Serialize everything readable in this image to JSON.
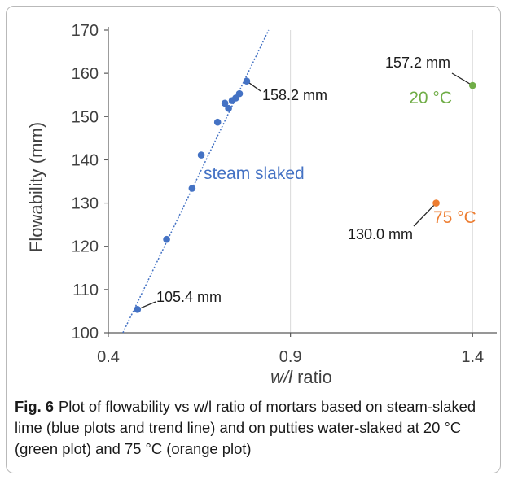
{
  "chart_data": {
    "type": "scatter",
    "xlabel_prefix": "w/l",
    "xlabel_suffix": " ratio",
    "ylabel": "Flowability (mm)",
    "xlim": [
      0.4,
      1.5
    ],
    "ylim": [
      100,
      170
    ],
    "x_ticks": [
      "0.4",
      "0.9",
      "1.4"
    ],
    "x_tick_values": [
      0.4,
      0.9,
      1.4
    ],
    "y_ticks": [
      "100",
      "110",
      "120",
      "130",
      "140",
      "150",
      "160",
      "170"
    ],
    "y_tick_values": [
      100,
      110,
      120,
      130,
      140,
      150,
      160,
      170
    ],
    "series": [
      {
        "name": "steam slaked",
        "color": "#4472c4",
        "points": [
          {
            "x": 0.48,
            "y": 105.4
          },
          {
            "x": 0.56,
            "y": 121.6
          },
          {
            "x": 0.63,
            "y": 133.4
          },
          {
            "x": 0.655,
            "y": 141.1
          },
          {
            "x": 0.7,
            "y": 148.7
          },
          {
            "x": 0.72,
            "y": 153.1
          },
          {
            "x": 0.73,
            "y": 151.9
          },
          {
            "x": 0.74,
            "y": 153.7
          },
          {
            "x": 0.75,
            "y": 154.3
          },
          {
            "x": 0.76,
            "y": 155.3
          },
          {
            "x": 0.78,
            "y": 158.2
          }
        ],
        "trend": {
          "x0": 0.44,
          "y0": 100,
          "x1": 0.84,
          "y1": 170
        }
      },
      {
        "name": "20 °C",
        "color": "#70ad47",
        "points": [
          {
            "x": 1.4,
            "y": 157.2
          }
        ]
      },
      {
        "name": "75 °C",
        "color": "#ed7d31",
        "points": [
          {
            "x": 1.3,
            "y": 130.0
          }
        ]
      }
    ],
    "annotations": [
      {
        "text": "158.2 mm",
        "x": 0.78,
        "y": 158.2
      },
      {
        "text": "105.4 mm",
        "x": 0.48,
        "y": 105.4
      },
      {
        "text": "157.2 mm",
        "x": 1.4,
        "y": 157.2
      },
      {
        "text": "130.0 mm",
        "x": 1.3,
        "y": 130.0
      }
    ],
    "grid": "vertical-major"
  },
  "caption": {
    "label": "Fig. 6",
    "text": "Plot of flowability vs w/l ratio of mortars based on steam-slaked lime (blue plots and trend line) and on putties water-slaked at 20 °C (green plot) and 75 °C (orange plot)"
  }
}
